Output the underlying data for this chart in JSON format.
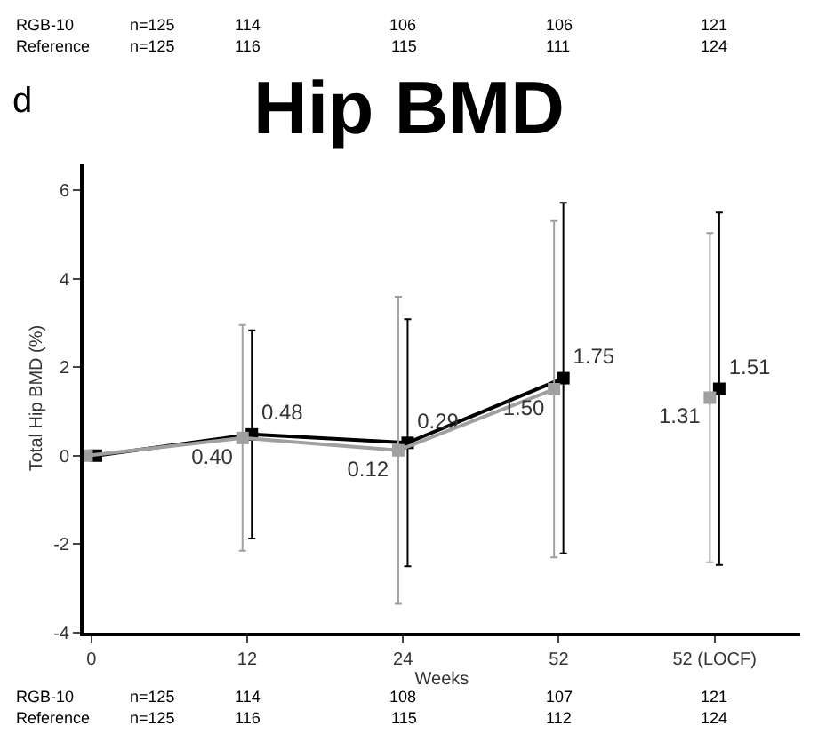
{
  "chart_data": {
    "type": "line",
    "title": "Hip BMD",
    "xlabel": "Weeks",
    "ylabel": "Total Hip BMD (%)",
    "categories": [
      "0",
      "12",
      "24",
      "52",
      "52 (LOCF)"
    ],
    "ylim": [
      -4,
      6.6
    ],
    "yticks": [
      -4,
      -2,
      0,
      2,
      4,
      6
    ],
    "grid": false,
    "marker": "square",
    "line_style": "solid",
    "series": [
      {
        "color": "#000000",
        "values": [
          0,
          0.48,
          0.29,
          1.75,
          null
        ],
        "errors": [
          null,
          2.35,
          2.79,
          3.96,
          null
        ],
        "value_labels": [
          null,
          "0.48",
          "0.29",
          "1.75",
          null
        ]
      },
      {
        "color": "#a0a0a0",
        "values": [
          0,
          0.4,
          0.12,
          1.5,
          null
        ],
        "errors": [
          null,
          2.55,
          3.47,
          3.8,
          null
        ],
        "value_labels": [
          null,
          "0.40",
          "0.12",
          "1.50",
          null
        ]
      },
      {
        "type": "scatter",
        "color": "#000000",
        "values": [
          null,
          null,
          null,
          null,
          1.51
        ],
        "errors": [
          null,
          null,
          null,
          null,
          3.98
        ],
        "value_labels": [
          null,
          null,
          null,
          null,
          "1.51"
        ]
      },
      {
        "type": "scatter",
        "color": "#a0a0a0",
        "values": [
          null,
          null,
          null,
          null,
          1.31
        ],
        "errors": [
          null,
          null,
          null,
          null,
          3.72
        ],
        "value_labels": [
          null,
          null,
          null,
          null,
          "1.31"
        ]
      }
    ],
    "annotations": [
      "d",
      "RGB-10",
      "n=125",
      "114",
      "106",
      "106",
      "121",
      "Reference",
      "n=125",
      "116",
      "115",
      "111",
      "124",
      "RGB-10",
      "n=125",
      "114",
      "108",
      "107",
      "121",
      "Reference",
      "n=125",
      "116",
      "115",
      "112",
      "124"
    ]
  }
}
